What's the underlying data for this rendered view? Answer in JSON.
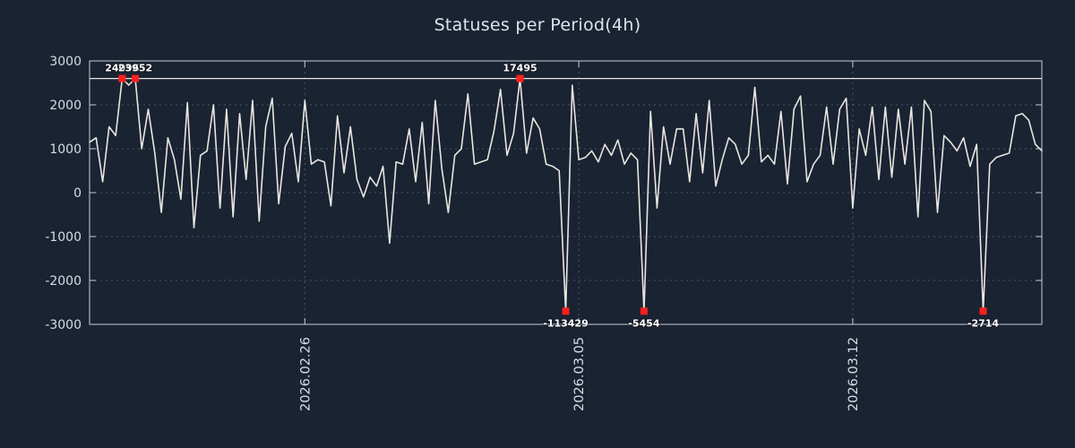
{
  "chart_data": {
    "type": "line",
    "title": "Statuses per Period(4h)",
    "xlabel": "",
    "ylabel": "",
    "ylim": [
      -3000,
      3000
    ],
    "y_ticks": [
      3000,
      2000,
      1000,
      0,
      -1000,
      -2000,
      -3000
    ],
    "x_ticks": [
      {
        "index": 33,
        "label": "2026.02.26"
      },
      {
        "index": 75,
        "label": "2026.03.05"
      },
      {
        "index": 117,
        "label": "2026.03.12"
      }
    ],
    "grid": true,
    "legend": "none",
    "clip_top": 2600,
    "clip_bottom": -2700,
    "values": [
      1150,
      1250,
      250,
      1500,
      1300,
      24096,
      2450,
      23952,
      1000,
      1900,
      900,
      -450,
      1250,
      750,
      -150,
      2050,
      -800,
      850,
      950,
      2000,
      -350,
      1900,
      -550,
      1800,
      300,
      2100,
      -650,
      1500,
      2150,
      -250,
      1050,
      1350,
      250,
      2100,
      650,
      750,
      700,
      -300,
      1750,
      450,
      1500,
      300,
      -100,
      350,
      150,
      600,
      -1150,
      700,
      650,
      1450,
      250,
      1600,
      -250,
      2100,
      550,
      -450,
      850,
      1000,
      2250,
      650,
      700,
      750,
      1400,
      2350,
      850,
      1350,
      17495,
      900,
      1700,
      1450,
      650,
      600,
      500,
      -113429,
      2450,
      750,
      800,
      950,
      700,
      1100,
      850,
      1200,
      650,
      900,
      750,
      -5454,
      1850,
      -350,
      1500,
      650,
      1450,
      1450,
      250,
      1800,
      450,
      2100,
      150,
      750,
      1250,
      1100,
      650,
      850,
      2400,
      700,
      850,
      650,
      1850,
      200,
      1900,
      2200,
      250,
      650,
      850,
      1950,
      650,
      1900,
      2150,
      -350,
      1450,
      850,
      1950,
      300,
      1950,
      350,
      1900,
      650,
      1950,
      -550,
      2100,
      1850,
      -450,
      1300,
      1150,
      950,
      1250,
      600,
      1100,
      -2714,
      650,
      800,
      850,
      900,
      1750,
      1800,
      1650,
      1100,
      950
    ],
    "annotations": [
      {
        "index": 5,
        "label": "24096"
      },
      {
        "index": 7,
        "label": "23952"
      },
      {
        "index": 66,
        "label": "17495"
      },
      {
        "index": 73,
        "label": "-113429"
      },
      {
        "index": 85,
        "label": "-5454"
      },
      {
        "index": 137,
        "label": "-2714"
      }
    ],
    "colors": {
      "background": "#1a2332",
      "line": "#e8e6df",
      "marker": "#ff1f1f",
      "text": "#d6dce4",
      "annotation": "#ffffff"
    }
  }
}
